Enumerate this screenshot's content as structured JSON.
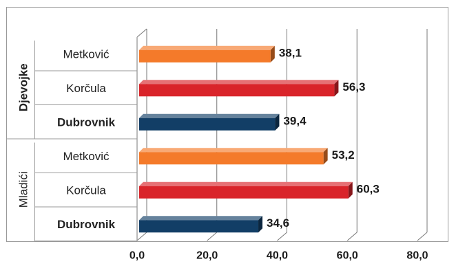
{
  "chart_data": {
    "type": "bar",
    "orientation": "horizontal",
    "style": "3d",
    "x_ticks": [
      "0,0",
      "20,0",
      "40,0",
      "60,0",
      "80,0"
    ],
    "xlim": [
      0,
      80
    ],
    "grid": "vertical",
    "groups": [
      {
        "label": "Djevojke",
        "bars": [
          {
            "category": "Metković",
            "value": 38.1,
            "value_label": "38,1",
            "color": "#f47a2a",
            "bold": false
          },
          {
            "category": "Korčula",
            "value": 56.3,
            "value_label": "56,3",
            "color": "#d9242a",
            "bold": false
          },
          {
            "category": "Dubrovnik",
            "value": 39.4,
            "value_label": "39,4",
            "color": "#123e66",
            "bold": true
          }
        ]
      },
      {
        "label": "Mladići",
        "bars": [
          {
            "category": "Metković",
            "value": 53.2,
            "value_label": "53,2",
            "color": "#f47a2a",
            "bold": false
          },
          {
            "category": "Korčula",
            "value": 60.3,
            "value_label": "60,3",
            "color": "#d9242a",
            "bold": false
          },
          {
            "category": "Dubrovnik",
            "value": 34.6,
            "value_label": "34,6",
            "color": "#123e66",
            "bold": true
          }
        ]
      }
    ]
  }
}
